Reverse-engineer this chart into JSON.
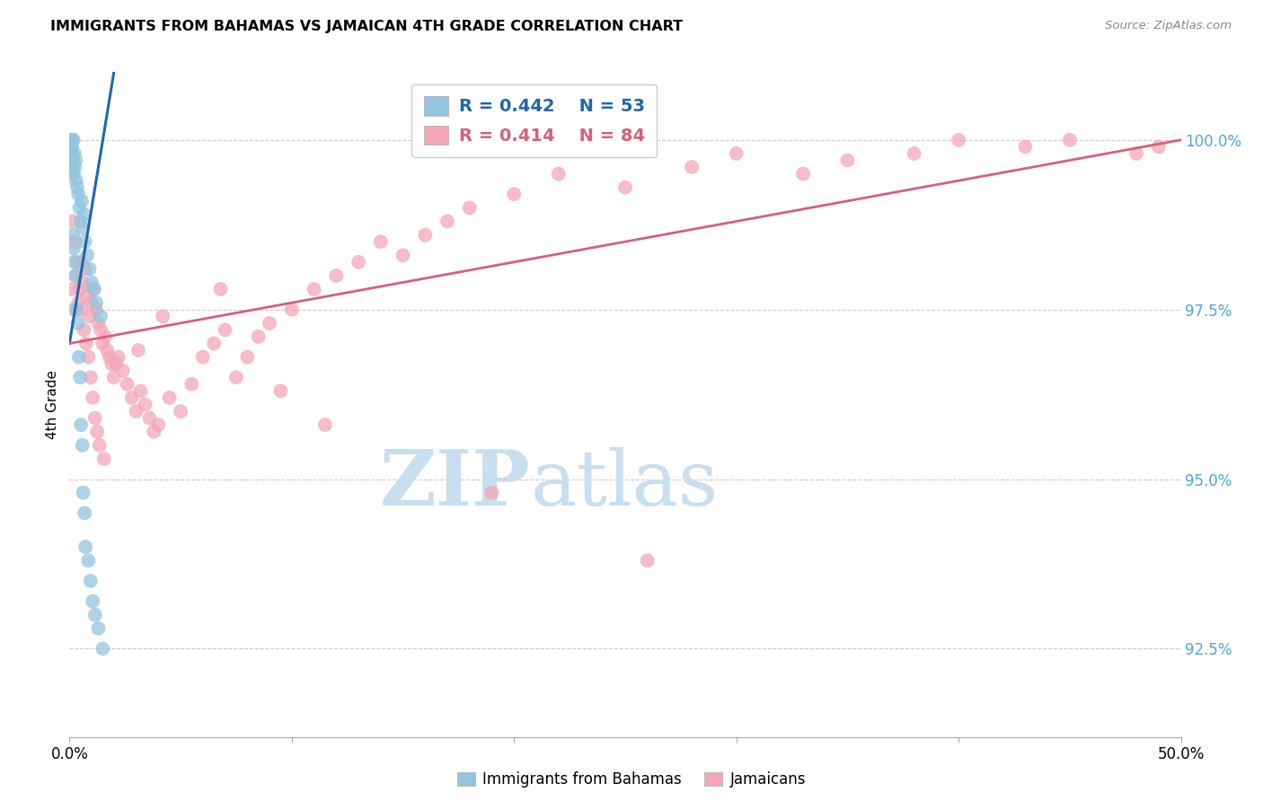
{
  "title": "IMMIGRANTS FROM BAHAMAS VS JAMAICAN 4TH GRADE CORRELATION CHART",
  "source": "Source: ZipAtlas.com",
  "ylabel": "4th Grade",
  "yticks": [
    92.5,
    95.0,
    97.5,
    100.0
  ],
  "ytick_labels": [
    "92.5%",
    "95.0%",
    "97.5%",
    "100.0%"
  ],
  "xlim": [
    0.0,
    50.0
  ],
  "ylim": [
    91.2,
    101.0
  ],
  "legend": {
    "blue_r": "0.442",
    "blue_n": "53",
    "pink_r": "0.414",
    "pink_n": "84"
  },
  "blue_color": "#92c5de",
  "pink_color": "#f4a6b8",
  "blue_line_color": "#2166ac",
  "pink_line_color": "#d6607a",
  "watermark_zip": "ZIP",
  "watermark_atlas": "atlas",
  "watermark_color_zip": "#c8dff0",
  "watermark_color_atlas": "#c8dff0",
  "background_color": "#ffffff",
  "grid_color": "#cccccc",
  "ytick_color": "#4da6e0",
  "xtick_color": "#000000",
  "blue_x": [
    0.05,
    0.08,
    0.1,
    0.12,
    0.15,
    0.18,
    0.2,
    0.22,
    0.25,
    0.28,
    0.3,
    0.35,
    0.4,
    0.45,
    0.5,
    0.55,
    0.6,
    0.65,
    0.7,
    0.8,
    0.9,
    1.0,
    1.1,
    1.2,
    1.4,
    0.05,
    0.07,
    0.09,
    0.11,
    0.13,
    0.16,
    0.19,
    0.23,
    0.26,
    0.32,
    0.38,
    0.42,
    0.48,
    0.52,
    0.58,
    0.62,
    0.68,
    0.72,
    0.85,
    0.95,
    1.05,
    1.15,
    1.3,
    1.5,
    0.05,
    0.06,
    0.08,
    0.1
  ],
  "blue_y": [
    99.8,
    100.0,
    99.9,
    100.0,
    99.7,
    100.0,
    99.5,
    99.8,
    99.6,
    99.7,
    99.4,
    99.3,
    99.2,
    99.0,
    98.8,
    99.1,
    98.7,
    98.9,
    98.5,
    98.3,
    98.1,
    97.9,
    97.8,
    97.6,
    97.4,
    99.9,
    99.8,
    99.7,
    99.6,
    99.5,
    98.6,
    98.4,
    98.2,
    98.0,
    97.5,
    97.3,
    96.8,
    96.5,
    95.8,
    95.5,
    94.8,
    94.5,
    94.0,
    93.8,
    93.5,
    93.2,
    93.0,
    92.8,
    92.5,
    99.9,
    99.8,
    99.9,
    100.0
  ],
  "pink_x": [
    0.1,
    0.2,
    0.3,
    0.4,
    0.5,
    0.6,
    0.7,
    0.8,
    0.9,
    1.0,
    1.1,
    1.2,
    1.3,
    1.4,
    1.5,
    1.6,
    1.7,
    1.8,
    1.9,
    2.0,
    2.2,
    2.4,
    2.6,
    2.8,
    3.0,
    3.2,
    3.4,
    3.6,
    3.8,
    4.0,
    4.5,
    5.0,
    5.5,
    6.0,
    6.5,
    7.0,
    7.5,
    8.0,
    8.5,
    9.0,
    10.0,
    11.0,
    12.0,
    13.0,
    14.0,
    15.0,
    16.0,
    17.0,
    18.0,
    20.0,
    22.0,
    25.0,
    28.0,
    30.0,
    33.0,
    35.0,
    38.0,
    40.0,
    43.0,
    45.0,
    48.0,
    49.0,
    0.15,
    0.25,
    0.35,
    0.45,
    0.55,
    0.65,
    0.75,
    0.85,
    0.95,
    1.05,
    1.15,
    1.25,
    1.35,
    1.55,
    2.1,
    3.1,
    4.2,
    6.8,
    9.5,
    11.5,
    19.0,
    26.0
  ],
  "pink_y": [
    97.8,
    97.5,
    98.0,
    97.6,
    98.2,
    97.9,
    98.1,
    97.7,
    97.4,
    97.6,
    97.8,
    97.5,
    97.3,
    97.2,
    97.0,
    97.1,
    96.9,
    96.8,
    96.7,
    96.5,
    96.8,
    96.6,
    96.4,
    96.2,
    96.0,
    96.3,
    96.1,
    95.9,
    95.7,
    95.8,
    96.2,
    96.0,
    96.4,
    96.8,
    97.0,
    97.2,
    96.5,
    96.8,
    97.1,
    97.3,
    97.5,
    97.8,
    98.0,
    98.2,
    98.5,
    98.3,
    98.6,
    98.8,
    99.0,
    99.2,
    99.5,
    99.3,
    99.6,
    99.8,
    99.5,
    99.7,
    99.8,
    100.0,
    99.9,
    100.0,
    99.8,
    99.9,
    98.8,
    98.5,
    98.2,
    97.8,
    97.5,
    97.2,
    97.0,
    96.8,
    96.5,
    96.2,
    95.9,
    95.7,
    95.5,
    95.3,
    96.7,
    96.9,
    97.4,
    97.8,
    96.3,
    95.8,
    94.8,
    93.8
  ]
}
